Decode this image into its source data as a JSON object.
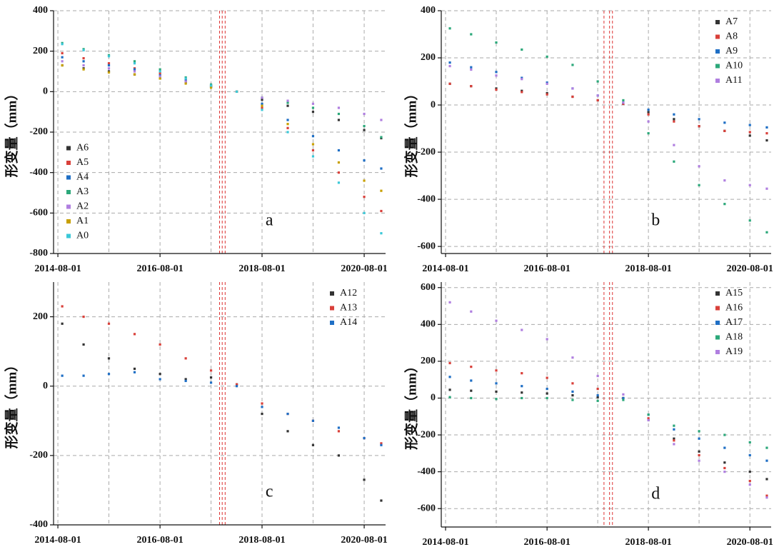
{
  "chart_data": [
    {
      "type": "scatter",
      "label": "a",
      "ylabel": "形变量（mm）",
      "legend": "lower left",
      "xlim": [
        "2014-07-01",
        "2021-01-01"
      ],
      "xticks": [
        "2014-08-01",
        "2016-08-01",
        "2018-08-01",
        "2020-08-01"
      ],
      "xgrid": [
        "2015-08-01",
        "2017-08-01",
        "2019-08-01"
      ],
      "vlines": [
        "2017-10-01",
        "2017-10-20",
        "2017-11-10"
      ],
      "ylim": [
        -800,
        400
      ],
      "yticks": [
        -800,
        -600,
        -400,
        -200,
        0,
        200,
        400
      ],
      "grid": true,
      "x": [
        "2014-09-01",
        "2015-02-01",
        "2015-08-01",
        "2016-02-01",
        "2016-08-01",
        "2017-02-01",
        "2017-08-01",
        "2018-02-01",
        "2018-08-01",
        "2019-02-01",
        "2019-08-01",
        "2020-02-01",
        "2020-08-01",
        "2020-12-01"
      ],
      "series": [
        {
          "name": "A6",
          "color": "#333333",
          "values": [
            130,
            115,
            100,
            85,
            65,
            45,
            25,
            0,
            -40,
            -70,
            -100,
            -140,
            -190,
            -230
          ]
        },
        {
          "name": "A5",
          "color": "#d9403a",
          "values": [
            190,
            165,
            140,
            115,
            90,
            60,
            30,
            0,
            -80,
            -180,
            -290,
            -400,
            -520,
            -590
          ]
        },
        {
          "name": "A4",
          "color": "#1f6fc5",
          "values": [
            170,
            150,
            130,
            110,
            80,
            55,
            25,
            0,
            -60,
            -140,
            -220,
            -290,
            -340,
            -380
          ]
        },
        {
          "name": "A3",
          "color": "#2ca87a",
          "values": [
            240,
            210,
            180,
            150,
            110,
            70,
            35,
            0,
            -30,
            -55,
            -80,
            -110,
            -170,
            -225
          ]
        },
        {
          "name": "A2",
          "color": "#b07fe0",
          "values": [
            150,
            130,
            115,
            100,
            75,
            50,
            25,
            0,
            -30,
            -45,
            -60,
            -80,
            -110,
            -140
          ]
        },
        {
          "name": "A1",
          "color": "#c8a000",
          "values": [
            130,
            110,
            95,
            85,
            65,
            40,
            20,
            0,
            -70,
            -160,
            -260,
            -350,
            -440,
            -490
          ]
        },
        {
          "name": "A0",
          "color": "#3cc8d8",
          "values": [
            235,
            205,
            175,
            140,
            100,
            65,
            30,
            0,
            -90,
            -200,
            -320,
            -450,
            -600,
            -700
          ]
        }
      ]
    },
    {
      "type": "scatter",
      "label": "b",
      "ylabel": "形变量（mm）",
      "legend": "upper right",
      "xlim": [
        "2014-07-01",
        "2021-01-01"
      ],
      "xticks": [
        "2014-08-01",
        "2016-08-01",
        "2018-08-01",
        "2020-08-01"
      ],
      "xgrid": [
        "2015-08-01",
        "2017-08-01",
        "2019-08-01"
      ],
      "vlines": [
        "2017-09-15",
        "2017-10-25",
        "2017-11-15"
      ],
      "ylim": [
        -630,
        400
      ],
      "yticks": [
        -600,
        -400,
        -200,
        0,
        200,
        400
      ],
      "grid": true,
      "x": [
        "2014-09-01",
        "2015-02-01",
        "2015-08-01",
        "2016-02-01",
        "2016-08-01",
        "2017-02-01",
        "2017-08-01",
        "2018-02-01",
        "2018-08-01",
        "2019-02-01",
        "2019-08-01",
        "2020-02-01",
        "2020-08-01",
        "2020-12-01"
      ],
      "series": [
        {
          "name": "A7",
          "color": "#333333",
          "values": [
            90,
            80,
            70,
            60,
            50,
            35,
            20,
            5,
            -30,
            -60,
            -90,
            -110,
            -130,
            -150
          ]
        },
        {
          "name": "A8",
          "color": "#d9403a",
          "values": [
            90,
            80,
            65,
            55,
            45,
            35,
            20,
            5,
            -40,
            -70,
            -90,
            -110,
            -115,
            -120
          ]
        },
        {
          "name": "A9",
          "color": "#1f6fc5",
          "values": [
            180,
            160,
            140,
            115,
            95,
            70,
            40,
            10,
            -20,
            -40,
            -60,
            -75,
            -85,
            -95
          ]
        },
        {
          "name": "A10",
          "color": "#2ca87a",
          "values": [
            325,
            300,
            265,
            235,
            205,
            170,
            100,
            20,
            -120,
            -240,
            -340,
            -420,
            -490,
            -540
          ]
        },
        {
          "name": "A11",
          "color": "#b07fe0",
          "values": [
            165,
            150,
            125,
            110,
            90,
            70,
            40,
            10,
            -70,
            -170,
            -260,
            -320,
            -340,
            -355
          ]
        }
      ]
    },
    {
      "type": "scatter",
      "label": "c",
      "ylabel": "形变量（mm）",
      "legend": "upper right",
      "xlim": [
        "2014-07-01",
        "2021-01-01"
      ],
      "xticks": [
        "2014-08-01",
        "2016-08-01",
        "2018-08-01",
        "2020-08-01"
      ],
      "xgrid": [
        "2015-08-01",
        "2017-08-01",
        "2019-08-01"
      ],
      "vlines": [
        "2017-10-01",
        "2017-10-20",
        "2017-11-10"
      ],
      "ylim": [
        -400,
        300
      ],
      "yticks": [
        -400,
        -200,
        0,
        200
      ],
      "grid": true,
      "x": [
        "2014-09-01",
        "2015-02-01",
        "2015-08-01",
        "2016-02-01",
        "2016-08-01",
        "2017-02-01",
        "2017-08-01",
        "2018-02-01",
        "2018-08-01",
        "2019-02-01",
        "2019-08-01",
        "2020-02-01",
        "2020-08-01",
        "2020-12-01"
      ],
      "series": [
        {
          "name": "A12",
          "color": "#333333",
          "values": [
            180,
            120,
            80,
            50,
            35,
            20,
            25,
            5,
            -80,
            -130,
            -170,
            -200,
            -270,
            -330
          ]
        },
        {
          "name": "A13",
          "color": "#d9403a",
          "values": [
            230,
            200,
            180,
            150,
            120,
            80,
            45,
            5,
            -50,
            -80,
            -100,
            -130,
            -150,
            -165
          ]
        },
        {
          "name": "A14",
          "color": "#1f6fc5",
          "values": [
            30,
            30,
            35,
            40,
            20,
            15,
            10,
            0,
            -60,
            -80,
            -100,
            -120,
            -150,
            -170
          ]
        }
      ]
    },
    {
      "type": "scatter",
      "label": "d",
      "ylabel": "形变量（mm）",
      "legend": "upper right",
      "xlim": [
        "2014-07-01",
        "2021-01-01"
      ],
      "xticks": [
        "2014-08-01",
        "2016-08-01",
        "2018-08-01",
        "2020-08-01"
      ],
      "xgrid": [
        "2015-08-01",
        "2017-08-01",
        "2019-08-01"
      ],
      "vlines": [
        "2017-09-15",
        "2017-10-25",
        "2017-11-15"
      ],
      "ylim": [
        -700,
        630
      ],
      "yticks": [
        -600,
        -400,
        -200,
        0,
        200,
        400,
        600
      ],
      "grid": true,
      "x": [
        "2014-09-01",
        "2015-02-01",
        "2015-08-01",
        "2016-02-01",
        "2016-08-01",
        "2017-02-01",
        "2017-08-01",
        "2018-02-01",
        "2018-08-01",
        "2019-02-01",
        "2019-08-01",
        "2020-02-01",
        "2020-08-01",
        "2020-12-01"
      ],
      "series": [
        {
          "name": "A15",
          "color": "#333333",
          "values": [
            45,
            40,
            35,
            30,
            25,
            15,
            5,
            0,
            -120,
            -220,
            -290,
            -350,
            -400,
            -440
          ]
        },
        {
          "name": "A16",
          "color": "#d9403a",
          "values": [
            190,
            170,
            150,
            135,
            110,
            80,
            50,
            0,
            -110,
            -230,
            -310,
            -380,
            -450,
            -530
          ]
        },
        {
          "name": "A17",
          "color": "#1f6fc5",
          "values": [
            115,
            95,
            80,
            65,
            50,
            35,
            15,
            0,
            -90,
            -170,
            -220,
            -270,
            -310,
            -340
          ]
        },
        {
          "name": "A18",
          "color": "#2ca87a",
          "values": [
            5,
            0,
            -5,
            0,
            0,
            -10,
            -15,
            -10,
            -90,
            -150,
            -180,
            -200,
            -240,
            -270
          ]
        },
        {
          "name": "A19",
          "color": "#b07fe0",
          "values": [
            520,
            470,
            420,
            370,
            320,
            220,
            120,
            20,
            -120,
            -250,
            -340,
            -400,
            -470,
            -540
          ]
        }
      ]
    }
  ]
}
